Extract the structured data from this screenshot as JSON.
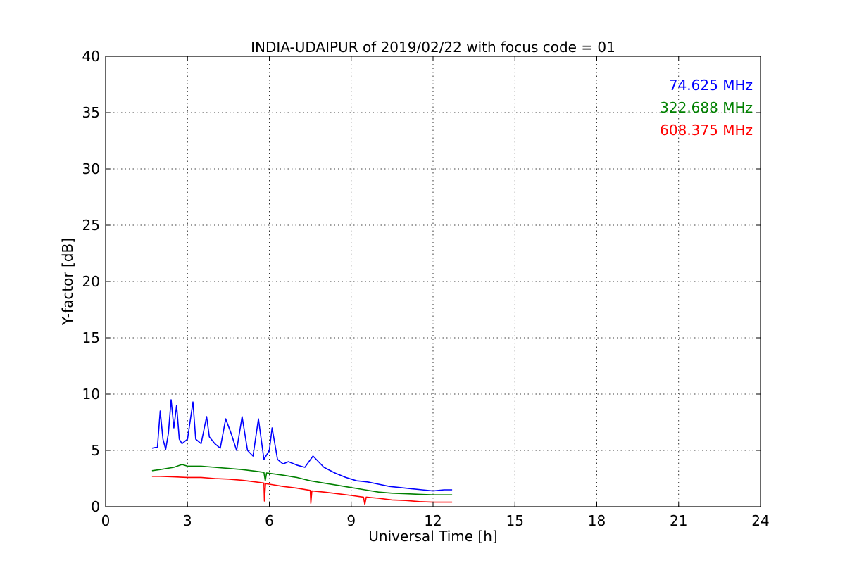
{
  "chart_data": {
    "type": "line",
    "title": "INDIA-UDAIPUR of 2019/02/22 with focus code = 01",
    "xlabel": "Universal Time [h]",
    "ylabel": "Y-factor [dB]",
    "xlim": [
      0,
      24
    ],
    "ylim": [
      0,
      40
    ],
    "xticks": [
      0,
      3,
      6,
      9,
      12,
      15,
      18,
      21,
      24
    ],
    "yticks": [
      0,
      5,
      10,
      15,
      20,
      25,
      30,
      35,
      40
    ],
    "grid": true,
    "legend_position": "top-right",
    "series": [
      {
        "name": "74.625 MHz",
        "color": "#0000ff",
        "x": [
          1.7,
          1.9,
          2.0,
          2.1,
          2.2,
          2.3,
          2.4,
          2.5,
          2.6,
          2.7,
          2.8,
          3.0,
          3.2,
          3.3,
          3.5,
          3.7,
          3.8,
          4.0,
          4.2,
          4.4,
          4.6,
          4.8,
          5.0,
          5.2,
          5.4,
          5.6,
          5.8,
          6.0,
          6.1,
          6.3,
          6.5,
          6.7,
          7.0,
          7.3,
          7.6,
          8.0,
          8.4,
          8.8,
          9.2,
          9.6,
          10.0,
          10.4,
          10.8,
          11.2,
          11.6,
          12.0,
          12.4,
          12.7
        ],
        "y": [
          5.2,
          5.3,
          8.5,
          6.0,
          5.1,
          6.5,
          9.5,
          7.0,
          9.0,
          6.0,
          5.6,
          6.0,
          9.3,
          6.0,
          5.6,
          8.0,
          6.2,
          5.6,
          5.2,
          7.8,
          6.5,
          5.0,
          8.0,
          5.0,
          4.5,
          7.8,
          4.2,
          5.0,
          7.0,
          4.2,
          3.8,
          4.0,
          3.7,
          3.5,
          4.5,
          3.5,
          3.0,
          2.6,
          2.3,
          2.2,
          2.0,
          1.8,
          1.7,
          1.6,
          1.5,
          1.4,
          1.5,
          1.5
        ]
      },
      {
        "name": "322.688 MHz",
        "color": "#008000",
        "x": [
          1.7,
          2.0,
          2.5,
          2.8,
          3.0,
          3.5,
          4.0,
          4.5,
          5.0,
          5.5,
          5.8,
          5.85,
          5.9,
          6.5,
          7.0,
          7.5,
          8.0,
          8.5,
          9.0,
          9.5,
          10.0,
          10.5,
          11.0,
          11.5,
          12.0,
          12.7
        ],
        "y": [
          3.2,
          3.3,
          3.5,
          3.75,
          3.6,
          3.6,
          3.5,
          3.4,
          3.3,
          3.15,
          3.05,
          2.3,
          3.0,
          2.8,
          2.6,
          2.3,
          2.1,
          1.9,
          1.7,
          1.5,
          1.3,
          1.2,
          1.15,
          1.1,
          1.05,
          1.05
        ]
      },
      {
        "name": "608.375 MHz",
        "color": "#ff0000",
        "x": [
          1.7,
          2.0,
          2.5,
          3.0,
          3.5,
          4.0,
          4.5,
          5.0,
          5.5,
          5.8,
          5.82,
          5.86,
          6.0,
          6.5,
          7.0,
          7.5,
          7.52,
          7.56,
          8.0,
          8.5,
          9.0,
          9.45,
          9.5,
          9.55,
          10.0,
          10.5,
          11.0,
          11.5,
          12.0,
          12.7
        ],
        "y": [
          2.7,
          2.7,
          2.65,
          2.6,
          2.6,
          2.5,
          2.45,
          2.35,
          2.2,
          2.1,
          0.5,
          2.05,
          2.0,
          1.8,
          1.65,
          1.45,
          0.3,
          1.4,
          1.3,
          1.15,
          1.0,
          0.85,
          0.2,
          0.85,
          0.75,
          0.6,
          0.55,
          0.45,
          0.4,
          0.4
        ]
      }
    ]
  }
}
